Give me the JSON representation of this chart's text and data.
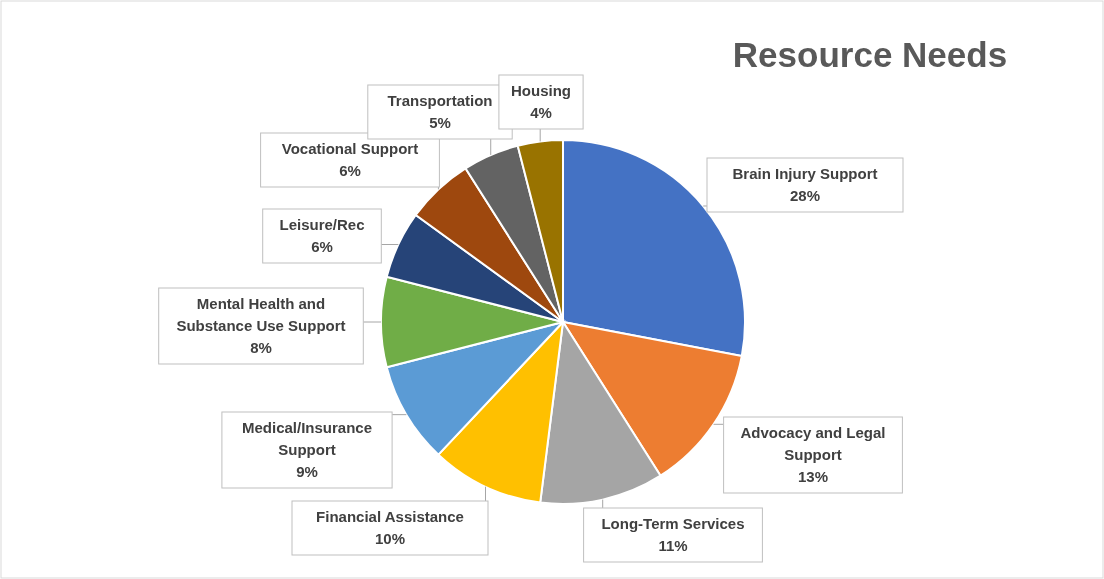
{
  "chart_data": {
    "type": "pie",
    "title": "Resource Needs",
    "categories": [
      "Brain Injury Support",
      "Advocacy and Legal Support",
      "Long-Term Services",
      "Financial Assistance",
      "Medical/Insurance Support",
      "Mental Health and Substance Use Support",
      "Leisure/Rec",
      "Vocational Support",
      "Transportation",
      "Housing"
    ],
    "values": [
      28,
      13,
      11,
      10,
      9,
      8,
      6,
      6,
      5,
      4
    ],
    "value_labels": [
      "28%",
      "13%",
      "11%",
      "10%",
      "9%",
      "8%",
      "6%",
      "6%",
      "5%",
      "4%"
    ],
    "colors": [
      "#4472c4",
      "#ed7d31",
      "#a5a5a5",
      "#ffc000",
      "#5b9bd5",
      "#70ad47",
      "#264478",
      "#9e480e",
      "#636363",
      "#997300"
    ]
  }
}
